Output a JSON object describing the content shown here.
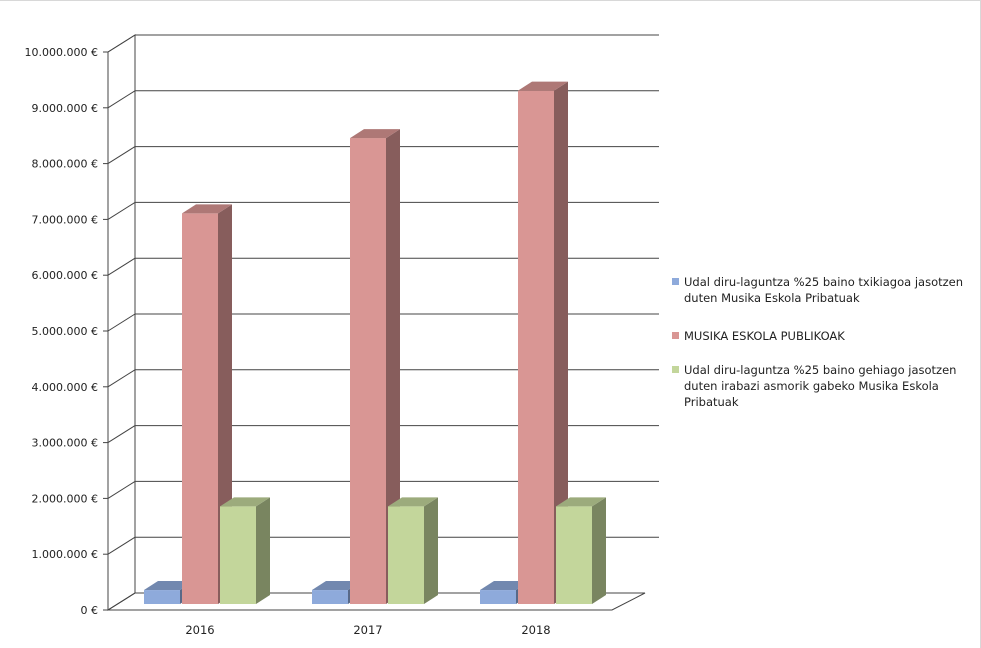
{
  "chart_data": {
    "type": "bar",
    "categories": [
      "2016",
      "2017",
      "2018"
    ],
    "series": [
      {
        "name": "Udal diru-laguntza %25 baino txikiagoa jasotzen duten Musika Eskola Pribatuak",
        "values": [
          250000,
          250000,
          250000
        ],
        "color": "#8eaadb"
      },
      {
        "name": "MUSIKA ESKOLA PUBLIKOAK",
        "values": [
          7000000,
          8350000,
          9200000
        ],
        "color": "#d99694"
      },
      {
        "name": "Udal diru-laguntza %25 baino gehiago jasotzen duten irabazi asmorik gabeko Musika Eskola Pribatuak",
        "values": [
          1750000,
          1750000,
          1750000
        ],
        "color": "#c3d69b"
      }
    ],
    "yticks": [
      "0 €",
      "1.000.000 €",
      "2.000.000 €",
      "3.000.000 €",
      "4.000.000 €",
      "5.000.000 €",
      "6.000.000 €",
      "7.000.000 €",
      "8.000.000 €",
      "9.000.000 €",
      "10.000.000 €"
    ],
    "ylim": [
      0,
      10000000
    ],
    "grid": true,
    "legend_position": "right",
    "style": "3d-clustered-column"
  }
}
